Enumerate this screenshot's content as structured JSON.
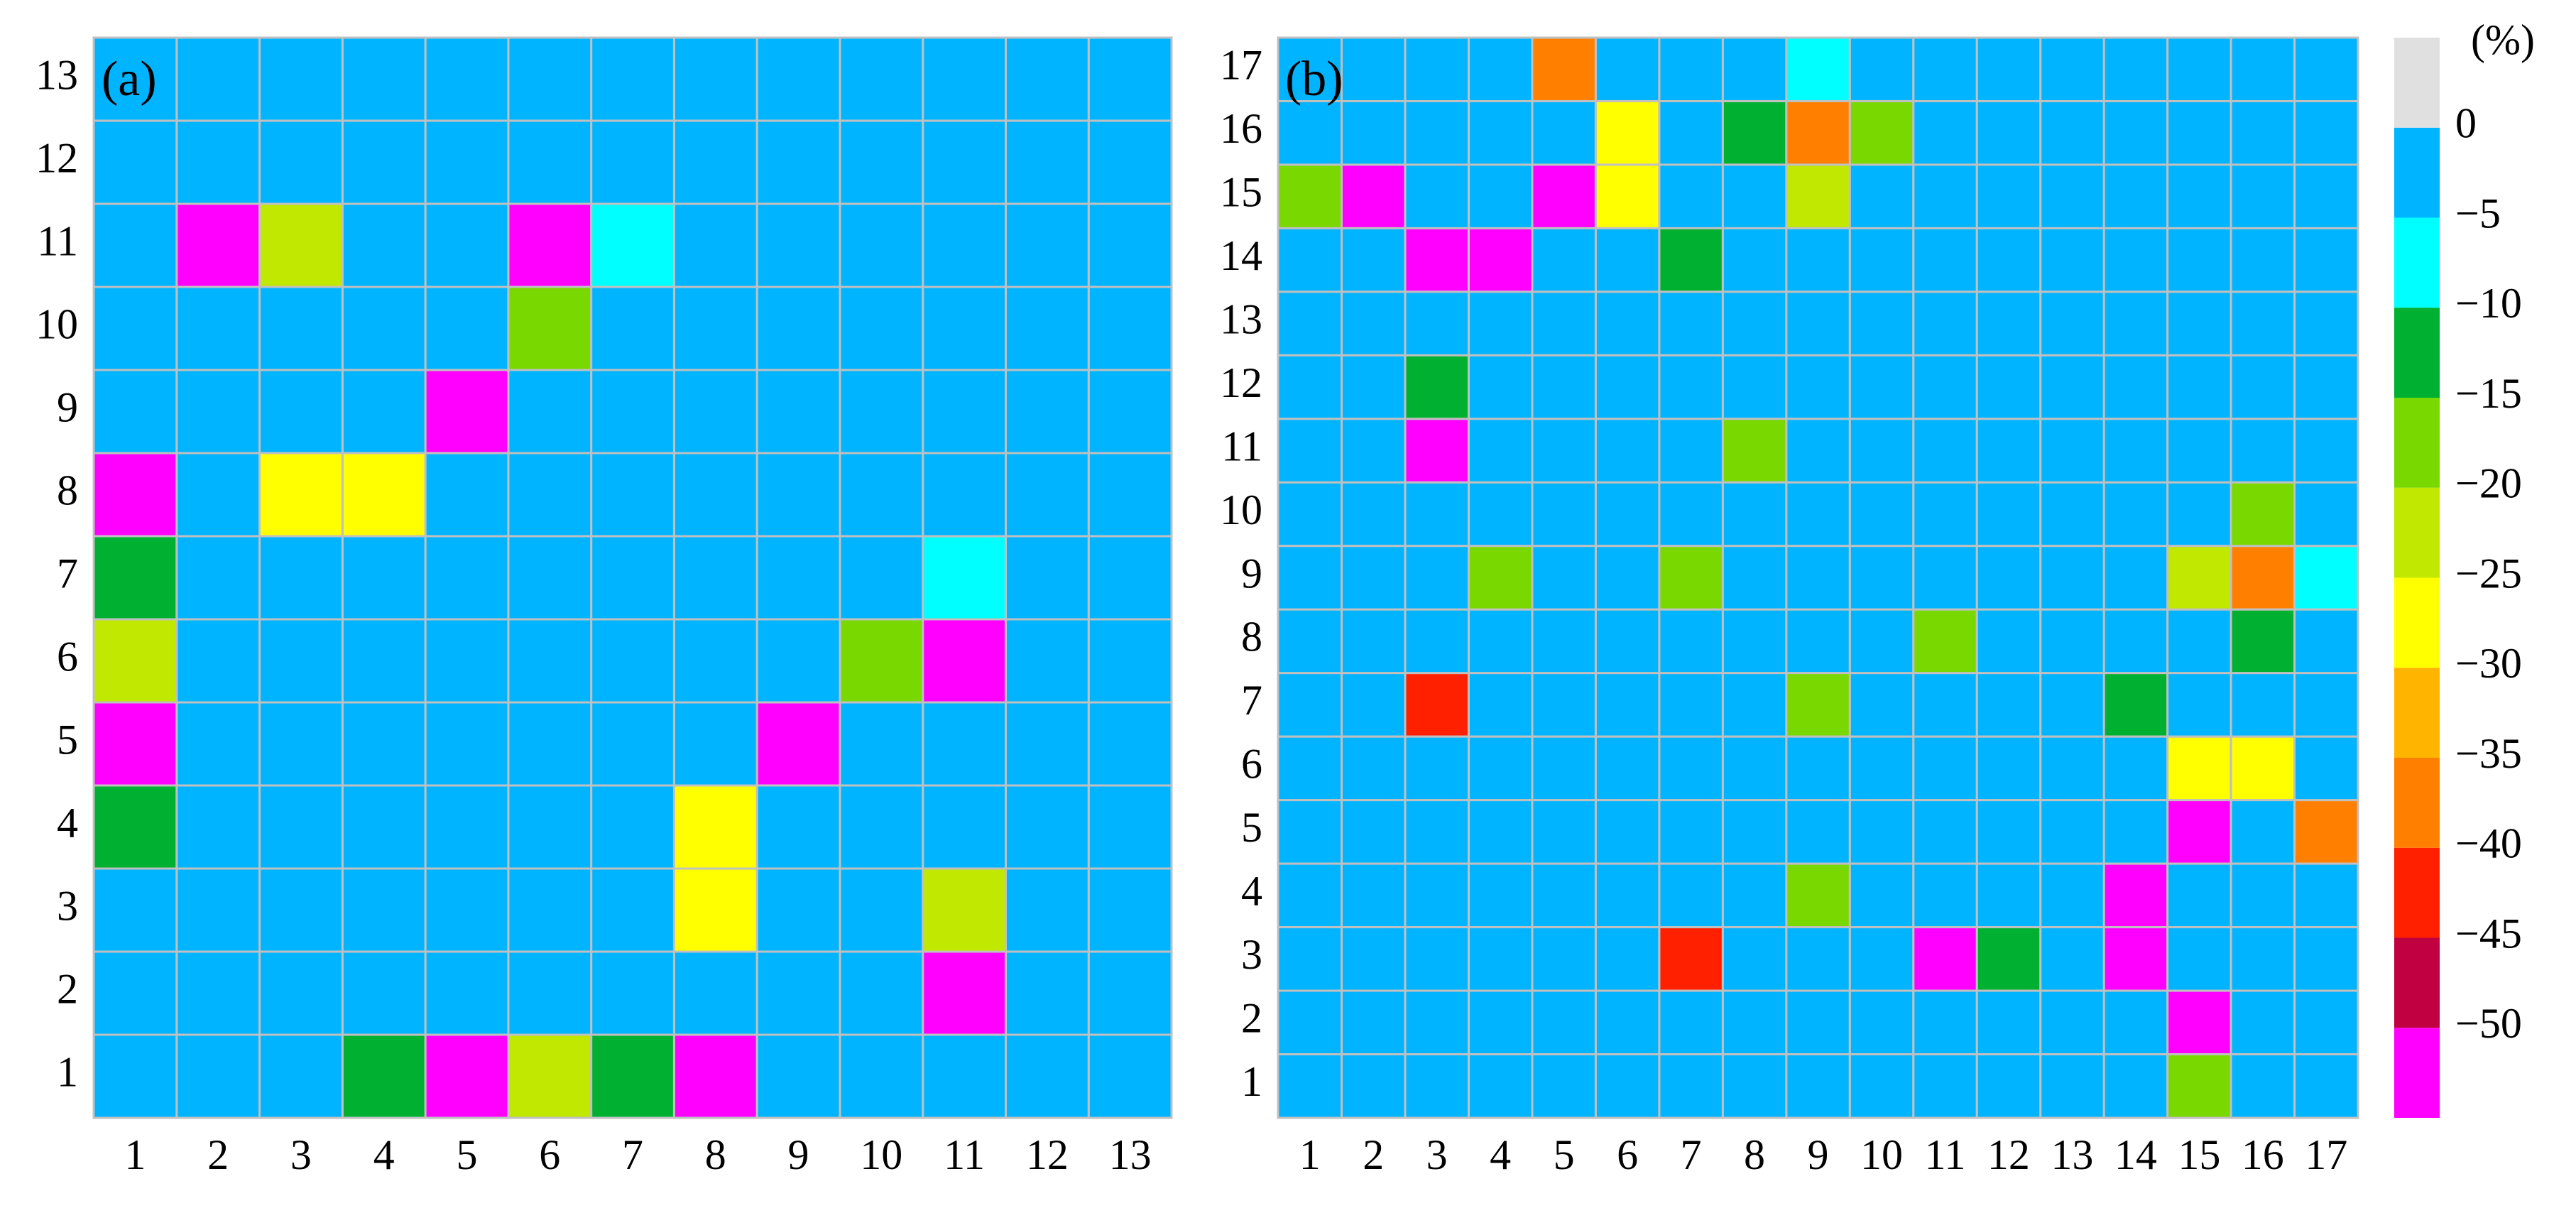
{
  "chart_data": [
    {
      "type": "heatmap",
      "annotation": "(a)",
      "x": [
        1,
        2,
        3,
        4,
        5,
        6,
        7,
        8,
        9,
        10,
        11,
        12,
        13
      ],
      "y": [
        1,
        2,
        3,
        4,
        5,
        6,
        7,
        8,
        9,
        10,
        11,
        12,
        13
      ],
      "z": [
        [
          -2.5,
          -2.5,
          -2.5,
          -12.5,
          -52.5,
          -22.5,
          -12.5,
          -52.5,
          -2.5,
          -2.5,
          -2.5,
          -2.5,
          -2.5
        ],
        [
          -2.5,
          -2.5,
          -2.5,
          -2.5,
          -2.5,
          -2.5,
          -2.5,
          -2.5,
          -2.5,
          -2.5,
          -52.5,
          -2.5,
          -2.5
        ],
        [
          -2.5,
          -2.5,
          -2.5,
          -2.5,
          -2.5,
          -2.5,
          -2.5,
          -27.5,
          -2.5,
          -2.5,
          -22.5,
          -2.5,
          -2.5
        ],
        [
          -12.5,
          -2.5,
          -2.5,
          -2.5,
          -2.5,
          -2.5,
          -2.5,
          -27.5,
          -2.5,
          -2.5,
          -2.5,
          -2.5,
          -2.5
        ],
        [
          -52.5,
          -2.5,
          -2.5,
          -2.5,
          -2.5,
          -2.5,
          -2.5,
          -2.5,
          -52.5,
          -2.5,
          -2.5,
          -2.5,
          -2.5
        ],
        [
          -22.5,
          -2.5,
          -2.5,
          -2.5,
          -2.5,
          -2.5,
          -2.5,
          -2.5,
          -2.5,
          -17.5,
          -52.5,
          -2.5,
          -2.5
        ],
        [
          -12.5,
          -2.5,
          -2.5,
          -2.5,
          -2.5,
          -2.5,
          -2.5,
          -2.5,
          -2.5,
          -2.5,
          -7.5,
          -2.5,
          -2.5
        ],
        [
          -52.5,
          -2.5,
          -27.5,
          -27.5,
          -2.5,
          -2.5,
          -2.5,
          -2.5,
          -2.5,
          -2.5,
          -2.5,
          -2.5,
          -2.5
        ],
        [
          -2.5,
          -2.5,
          -2.5,
          -2.5,
          -52.5,
          -2.5,
          -2.5,
          -2.5,
          -2.5,
          -2.5,
          -2.5,
          -2.5,
          -2.5
        ],
        [
          -2.5,
          -2.5,
          -2.5,
          -2.5,
          -2.5,
          -17.5,
          -2.5,
          -2.5,
          -2.5,
          -2.5,
          -2.5,
          -2.5,
          -2.5
        ],
        [
          -2.5,
          -52.5,
          -22.5,
          -2.5,
          -2.5,
          -52.5,
          -7.5,
          -2.5,
          -2.5,
          -2.5,
          -2.5,
          -2.5,
          -2.5
        ],
        [
          -2.5,
          -2.5,
          -2.5,
          -2.5,
          -2.5,
          -2.5,
          -2.5,
          -2.5,
          -2.5,
          -2.5,
          -2.5,
          -2.5,
          -2.5
        ],
        [
          -2.5,
          -2.5,
          -2.5,
          -2.5,
          -2.5,
          -2.5,
          -2.5,
          -2.5,
          -2.5,
          -2.5,
          -2.5,
          -2.5,
          -2.5
        ]
      ]
    },
    {
      "type": "heatmap",
      "annotation": "(b)",
      "x": [
        1,
        2,
        3,
        4,
        5,
        6,
        7,
        8,
        9,
        10,
        11,
        12,
        13,
        14,
        15,
        16,
        17
      ],
      "y": [
        1,
        2,
        3,
        4,
        5,
        6,
        7,
        8,
        9,
        10,
        11,
        12,
        13,
        14,
        15,
        16,
        17
      ],
      "z": [
        [
          -2.5,
          -2.5,
          -2.5,
          -2.5,
          -2.5,
          -2.5,
          -2.5,
          -2.5,
          -2.5,
          -2.5,
          -2.5,
          -2.5,
          -2.5,
          -2.5,
          -17.5,
          -2.5,
          -2.5
        ],
        [
          -2.5,
          -2.5,
          -2.5,
          -2.5,
          -2.5,
          -2.5,
          -2.5,
          -2.5,
          -2.5,
          -2.5,
          -2.5,
          -2.5,
          -2.5,
          -2.5,
          -52.5,
          -2.5,
          -2.5
        ],
        [
          -2.5,
          -2.5,
          -2.5,
          -2.5,
          -2.5,
          -2.5,
          -42.5,
          -2.5,
          -2.5,
          -2.5,
          -52.5,
          -12.5,
          -2.5,
          -52.5,
          -2.5,
          -2.5,
          -2.5
        ],
        [
          -2.5,
          -2.5,
          -2.5,
          -2.5,
          -2.5,
          -2.5,
          -2.5,
          -2.5,
          -17.5,
          -2.5,
          -2.5,
          -2.5,
          -2.5,
          -52.5,
          -2.5,
          -2.5,
          -2.5
        ],
        [
          -2.5,
          -2.5,
          -2.5,
          -2.5,
          -2.5,
          -2.5,
          -2.5,
          -2.5,
          -2.5,
          -2.5,
          -2.5,
          -2.5,
          -2.5,
          -2.5,
          -52.5,
          -2.5,
          -37.5
        ],
        [
          -2.5,
          -2.5,
          -2.5,
          -2.5,
          -2.5,
          -2.5,
          -2.5,
          -2.5,
          -2.5,
          -2.5,
          -2.5,
          -2.5,
          -2.5,
          -2.5,
          -27.5,
          -27.5,
          -2.5
        ],
        [
          -2.5,
          -2.5,
          -42.5,
          -2.5,
          -2.5,
          -2.5,
          -2.5,
          -2.5,
          -17.5,
          -2.5,
          -2.5,
          -2.5,
          -2.5,
          -12.5,
          -2.5,
          -2.5,
          -2.5
        ],
        [
          -2.5,
          -2.5,
          -2.5,
          -2.5,
          -2.5,
          -2.5,
          -2.5,
          -2.5,
          -2.5,
          -2.5,
          -17.5,
          -2.5,
          -2.5,
          -2.5,
          -2.5,
          -12.5,
          -2.5
        ],
        [
          -2.5,
          -2.5,
          -2.5,
          -17.5,
          -2.5,
          -2.5,
          -17.5,
          -2.5,
          -2.5,
          -2.5,
          -2.5,
          -2.5,
          -2.5,
          -2.5,
          -22.5,
          -37.5,
          -7.5
        ],
        [
          -2.5,
          -2.5,
          -2.5,
          -2.5,
          -2.5,
          -2.5,
          -2.5,
          -2.5,
          -2.5,
          -2.5,
          -2.5,
          -2.5,
          -2.5,
          -2.5,
          -2.5,
          -17.5,
          -2.5
        ],
        [
          -2.5,
          -2.5,
          -52.5,
          -2.5,
          -2.5,
          -2.5,
          -2.5,
          -17.5,
          -2.5,
          -2.5,
          -2.5,
          -2.5,
          -2.5,
          -2.5,
          -2.5,
          -2.5,
          -2.5
        ],
        [
          -2.5,
          -2.5,
          -12.5,
          -2.5,
          -2.5,
          -2.5,
          -2.5,
          -2.5,
          -2.5,
          -2.5,
          -2.5,
          -2.5,
          -2.5,
          -2.5,
          -2.5,
          -2.5,
          -2.5
        ],
        [
          -2.5,
          -2.5,
          -2.5,
          -2.5,
          -2.5,
          -2.5,
          -2.5,
          -2.5,
          -2.5,
          -2.5,
          -2.5,
          -2.5,
          -2.5,
          -2.5,
          -2.5,
          -2.5,
          -2.5
        ],
        [
          -2.5,
          -2.5,
          -52.5,
          -52.5,
          -2.5,
          -2.5,
          -12.5,
          -2.5,
          -2.5,
          -2.5,
          -2.5,
          -2.5,
          -2.5,
          -2.5,
          -2.5,
          -2.5,
          -2.5
        ],
        [
          -17.5,
          -52.5,
          -2.5,
          -2.5,
          -52.5,
          -27.5,
          -2.5,
          -2.5,
          -22.5,
          -2.5,
          -2.5,
          -2.5,
          -2.5,
          -2.5,
          -2.5,
          -2.5,
          -2.5
        ],
        [
          -2.5,
          -2.5,
          -2.5,
          -2.5,
          -2.5,
          -27.5,
          -2.5,
          -12.5,
          -37.5,
          -17.5,
          -2.5,
          -2.5,
          -2.5,
          -2.5,
          -2.5,
          -2.5,
          -2.5
        ],
        [
          -2.5,
          -2.5,
          -2.5,
          -2.5,
          -37.5,
          -2.5,
          -2.5,
          -2.5,
          -7.5,
          -2.5,
          -2.5,
          -2.5,
          -2.5,
          -2.5,
          -2.5,
          -2.5,
          -2.5
        ]
      ]
    }
  ],
  "colorbar": {
    "label": "(%)",
    "lim": [
      -55,
      5
    ],
    "ticks": [
      0,
      {
        "value": -5,
        "label": "−5"
      },
      {
        "value": -10,
        "label": "−10"
      },
      {
        "value": -15,
        "label": "−15"
      },
      {
        "value": -20,
        "label": "−20"
      },
      {
        "value": -25,
        "label": "−25"
      },
      {
        "value": -30,
        "label": "−30"
      },
      {
        "value": -35,
        "label": "−35"
      },
      {
        "value": -40,
        "label": "−40"
      },
      {
        "value": -45,
        "label": "−45"
      },
      {
        "value": -50,
        "label": "−50"
      }
    ],
    "colors": [
      "#ff00ff",
      "#c00040",
      "#ff2000",
      "#ff8000",
      "#ffb400",
      "#ffff00",
      "#c0e800",
      "#78d800",
      "#00b030",
      "#00ffff",
      "#00b4ff",
      "#e0e0e0"
    ]
  }
}
